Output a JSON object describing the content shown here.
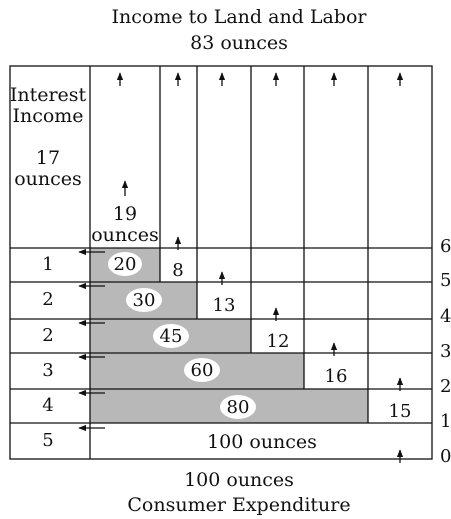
{
  "top_title_line1": "Income to Land and Labor",
  "top_title_line2": "83 ounces",
  "bottom_title_line1": "100 ounces",
  "bottom_title_line2": "Consumer Expenditure",
  "interest_label_line1": "Interest",
  "interest_label_line2": "Income",
  "interest_amount_line1": "17",
  "interest_amount_line2": "ounces",
  "first_stage_line1": "19",
  "first_stage_line2": "ounces",
  "stage_markers": [
    "6",
    "5",
    "4",
    "3",
    "2",
    "1",
    "0"
  ],
  "interest_per_stage": [
    "1",
    "2",
    "2",
    "3",
    "4",
    "5"
  ],
  "capital_values": [
    "20",
    "30",
    "45",
    "60",
    "80"
  ],
  "income_per_stage": [
    "8",
    "13",
    "12",
    "16",
    "15"
  ],
  "consumer_row_label": "100 ounces"
}
